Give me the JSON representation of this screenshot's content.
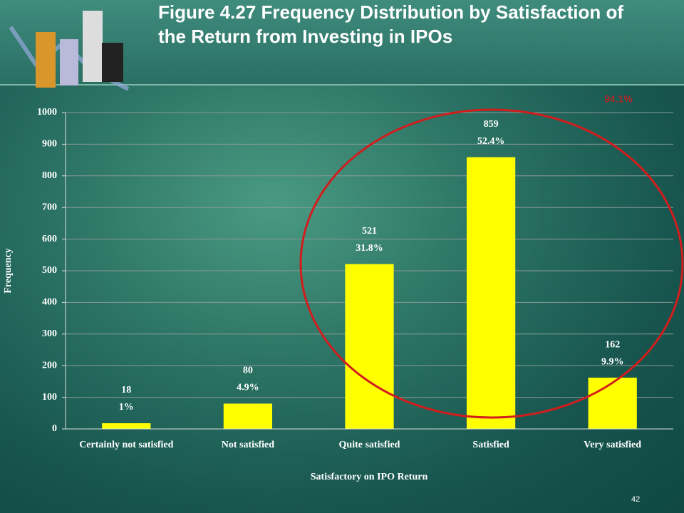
{
  "chart_data": {
    "type": "bar",
    "title": "Figure 4.27  Frequency Distribution by Satisfaction of the Return from Investing in IPOs",
    "x_label": "Satisfactory on IPO Return",
    "y_label": "Frequency",
    "categories": [
      "Certainly not satisfied",
      "Not satisfied",
      "Quite satisfied",
      "Satisfied",
      "Very satisfied"
    ],
    "values": [
      18,
      80,
      521,
      859,
      162
    ],
    "percent_labels": [
      "1%",
      "4.9%",
      "31.8%",
      "52.4%",
      "9.9%"
    ],
    "color": "#ffff00",
    "ylim": [
      0,
      1000
    ],
    "yticks": [
      0,
      100,
      200,
      300,
      400,
      500,
      600,
      700,
      800,
      900,
      1000
    ],
    "grid": true,
    "annotation": "94.1%",
    "page_number": "42"
  }
}
